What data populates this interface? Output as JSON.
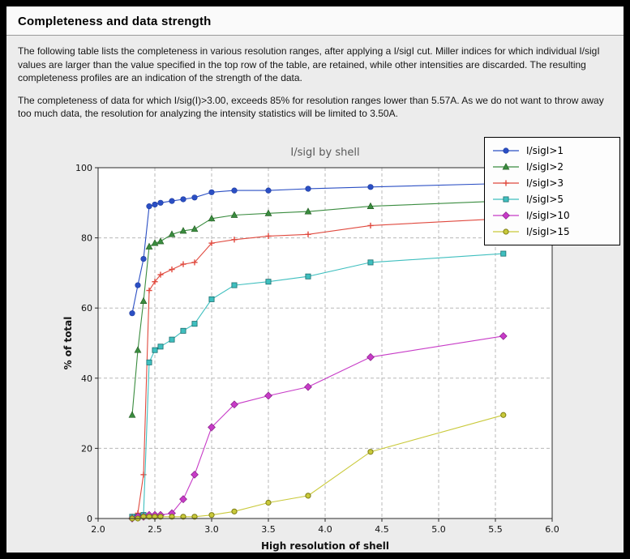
{
  "page": {
    "title": "Completeness and data strength",
    "paragraph1": "The following table lists the completeness in various resolution ranges, after applying a I/sigI cut. Miller indices for which individual I/sigI values are larger than the value specified in the top row of the table, are retained, while other intensities are discarded. The resulting completeness profiles are an indication of the strength of the data.",
    "paragraph2": "The completeness of data for which I/sig(I)>3.00, exceeds  85% for resolution ranges lower than 5.57A. As we do not want to throw away too much data, the resolution for analyzing the intensity statistics will be limited to 3.50A."
  },
  "chart_data": {
    "type": "line",
    "title": "I/sigI by shell",
    "xlabel": "High resolution of shell",
    "ylabel": "% of total",
    "xlim": [
      2.0,
      6.0
    ],
    "ylim": [
      0,
      100
    ],
    "xticks": [
      2.0,
      2.5,
      3.0,
      3.5,
      4.0,
      4.5,
      5.0,
      5.5,
      6.0
    ],
    "yticks": [
      0,
      20,
      40,
      60,
      80,
      100
    ],
    "grid": "dashed",
    "legend_position": "top-right",
    "plot_bg": "#ffffff",
    "figure_bg": "#ececec",
    "grid_color": "#b8b8b8",
    "x": [
      2.3,
      2.35,
      2.4,
      2.45,
      2.5,
      2.55,
      2.65,
      2.75,
      2.85,
      3.0,
      3.2,
      3.5,
      3.85,
      4.4,
      5.57
    ],
    "series": [
      {
        "name": "I/sigI>1",
        "color": "#2b4fc4",
        "edge": "#1c3a9e",
        "marker": "circle",
        "values": [
          58.5,
          66.5,
          74.0,
          89.0,
          89.5,
          90.0,
          90.5,
          91.0,
          91.5,
          93.0,
          93.5,
          93.5,
          94.0,
          94.5,
          95.5
        ]
      },
      {
        "name": "I/sigI>2",
        "color": "#3a8c3f",
        "edge": "#20591f",
        "marker": "triangle",
        "values": [
          29.5,
          48.0,
          62.0,
          77.5,
          78.5,
          79.0,
          81.0,
          82.0,
          82.5,
          85.5,
          86.5,
          87.0,
          87.5,
          89.0,
          90.5
        ]
      },
      {
        "name": "I/sigI>3",
        "color": "#e0493e",
        "edge": "#a32d24",
        "marker": "plus",
        "values": [
          0.5,
          1.5,
          12.5,
          65.0,
          67.5,
          69.5,
          71.0,
          72.5,
          73.0,
          78.5,
          79.5,
          80.5,
          81.0,
          83.5,
          85.5
        ]
      },
      {
        "name": "I/sigI>5",
        "color": "#3fbfbf",
        "edge": "#1b6e6e",
        "marker": "square",
        "values": [
          0.5,
          0.5,
          1.0,
          44.5,
          48.0,
          49.0,
          51.0,
          53.5,
          55.5,
          62.5,
          66.5,
          67.5,
          69.0,
          73.0,
          75.5
        ]
      },
      {
        "name": "I/sigI>10",
        "color": "#c73bc7",
        "edge": "#851f85",
        "marker": "diamond",
        "values": [
          0.0,
          0.5,
          0.5,
          1.0,
          1.0,
          1.0,
          1.5,
          5.5,
          12.5,
          26.0,
          32.5,
          35.0,
          37.5,
          46.0,
          52.0
        ]
      },
      {
        "name": "I/sigI>15",
        "color": "#c9c93a",
        "edge": "#7d7d14",
        "marker": "circle-open",
        "values": [
          0.0,
          0.0,
          0.5,
          0.5,
          0.5,
          0.5,
          0.5,
          0.5,
          0.5,
          1.0,
          2.0,
          4.5,
          6.5,
          19.0,
          29.5
        ]
      }
    ]
  }
}
